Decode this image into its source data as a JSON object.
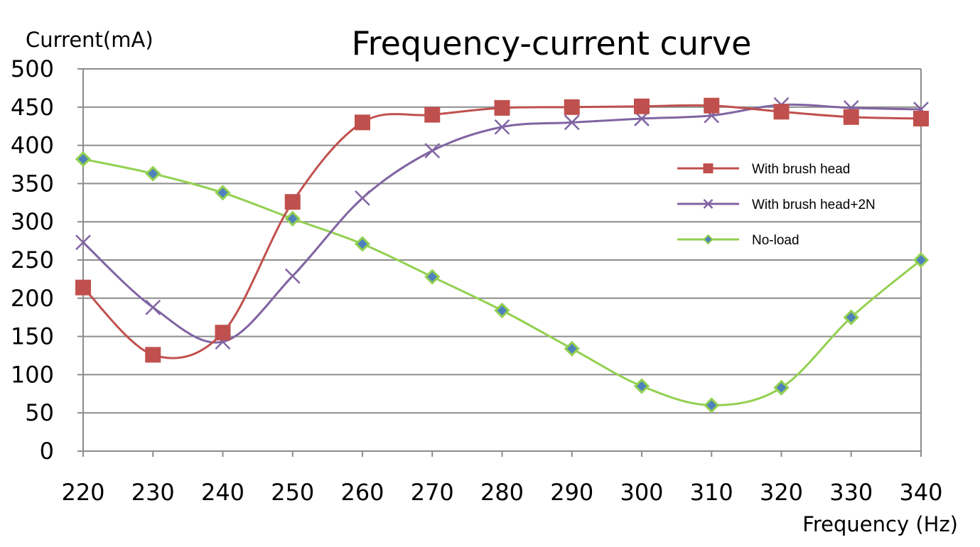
{
  "chart_data": {
    "type": "line",
    "title": "Frequency-current curve",
    "xlabel": "Frequency (Hz)",
    "ylabel": "Current(mA)",
    "x": [
      220,
      230,
      240,
      250,
      260,
      270,
      280,
      290,
      300,
      310,
      320,
      330,
      340
    ],
    "xlim": [
      220,
      340
    ],
    "ylim": [
      0,
      500
    ],
    "y_ticks": [
      0,
      50,
      100,
      150,
      200,
      250,
      300,
      350,
      400,
      450,
      500
    ],
    "x_tick_labels": [
      "220",
      "230",
      "240",
      "250",
      "260",
      "270",
      "280",
      "290",
      "300",
      "310",
      "320",
      "330",
      "340"
    ],
    "y_tick_labels": [
      "0",
      "50",
      "100",
      "150",
      "200",
      "250",
      "300",
      "350",
      "400",
      "450",
      "500"
    ],
    "grid": true,
    "legend_position": "right",
    "series": [
      {
        "name": "With brush head",
        "color": "#c0504d",
        "marker": "square",
        "values": [
          214,
          126,
          155,
          326,
          430,
          440,
          449,
          450,
          451,
          452,
          444,
          437,
          435
        ]
      },
      {
        "name": "With brush head+2N",
        "color": "#8064a2",
        "marker": "x",
        "values": [
          273,
          188,
          143,
          229,
          331,
          393,
          424,
          430,
          435,
          439,
          453,
          449,
          447
        ]
      },
      {
        "name": "No-load",
        "color": "#92d050",
        "marker": "diamond",
        "marker_fill": "#4f81bd",
        "values": [
          382,
          363,
          338,
          304,
          271,
          228,
          184,
          134,
          85,
          60,
          83,
          175,
          250
        ]
      }
    ]
  }
}
